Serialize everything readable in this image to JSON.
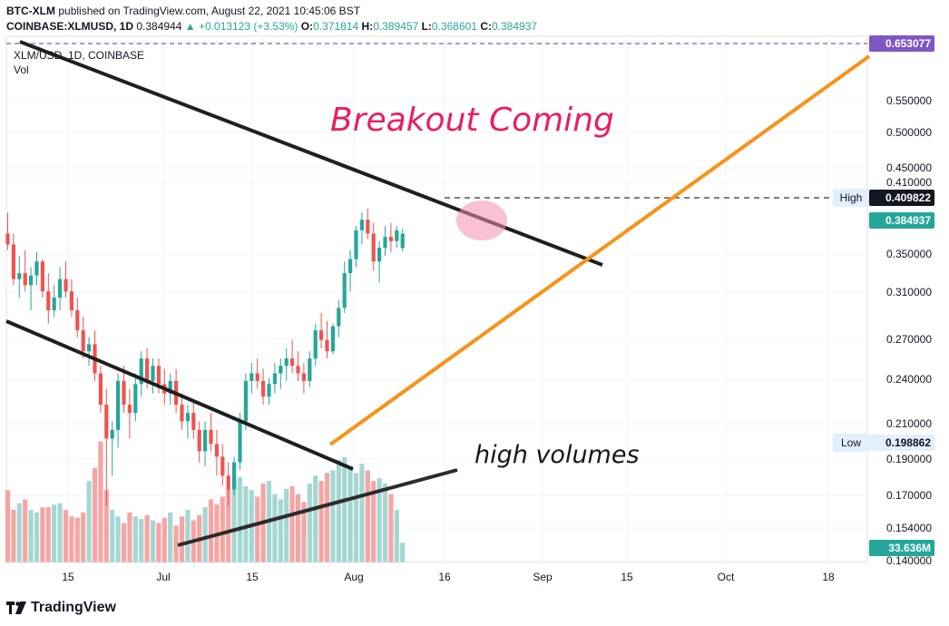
{
  "header": {
    "publisher": "BTC-XLM",
    "published_text": "published on TradingView.com, August 22, 2021 10:45:06 BST",
    "symbol": "COINBASE:XLMUSD, 1D",
    "last": "0.384944",
    "change": "+0.013123 (+3.53%)",
    "o_label": "O:",
    "o": "0.371814",
    "h_label": "H:",
    "h": "0.389457",
    "l_label": "L:",
    "l": "0.368601",
    "c_label": "C:",
    "c": "0.384937"
  },
  "legend": {
    "symbol": "XLM/USD, 1D, COINBASE",
    "vol": "Vol"
  },
  "footer": {
    "brand": "TradingView"
  },
  "annotations": {
    "breakout": "Breakout Coming",
    "volumes": "high volumes"
  },
  "colors": {
    "up": "#26a69a",
    "down": "#ef5350",
    "orange": "#f7931a",
    "pink": "#e91e63",
    "trendline": "#1f1f1f",
    "purple": "#7e57c2"
  },
  "chart_data": {
    "type": "candlestick",
    "title": "XLM/USD, 1D, COINBASE",
    "y_axis_ticks": [
      "0.550000",
      "0.500000",
      "0.450000",
      "0.410000",
      "0.350000",
      "0.310000",
      "0.270000",
      "0.240000",
      "0.210000",
      "0.190000",
      "0.170000",
      "0.154000",
      "0.140000"
    ],
    "x_axis_ticks": [
      "15",
      "Jul",
      "15",
      "Aug",
      "16",
      "Sep",
      "15",
      "Oct",
      "18"
    ],
    "price_labels": [
      {
        "text": "0.653077",
        "kind": "purple"
      },
      {
        "text": "0.409822",
        "kind": "dark",
        "label": "High"
      },
      {
        "text": "0.384937",
        "kind": "green"
      },
      {
        "text": "0.198862",
        "kind": "light",
        "label": "Low"
      },
      {
        "text": "33.636M",
        "kind": "green"
      }
    ],
    "ohlc": [
      [
        0.385,
        0.405,
        0.37,
        0.375
      ],
      [
        0.375,
        0.385,
        0.34,
        0.345
      ],
      [
        0.345,
        0.365,
        0.33,
        0.35
      ],
      [
        0.35,
        0.37,
        0.335,
        0.34
      ],
      [
        0.34,
        0.355,
        0.32,
        0.348
      ],
      [
        0.348,
        0.368,
        0.34,
        0.36
      ],
      [
        0.36,
        0.362,
        0.33,
        0.335
      ],
      [
        0.335,
        0.35,
        0.31,
        0.32
      ],
      [
        0.32,
        0.34,
        0.315,
        0.33
      ],
      [
        0.33,
        0.355,
        0.32,
        0.345
      ],
      [
        0.345,
        0.36,
        0.33,
        0.335
      ],
      [
        0.335,
        0.345,
        0.315,
        0.32
      ],
      [
        0.32,
        0.33,
        0.3,
        0.305
      ],
      [
        0.305,
        0.315,
        0.285,
        0.29
      ],
      [
        0.29,
        0.3,
        0.28,
        0.295
      ],
      [
        0.295,
        0.305,
        0.27,
        0.275
      ],
      [
        0.275,
        0.28,
        0.25,
        0.255
      ],
      [
        0.255,
        0.265,
        0.2,
        0.235
      ],
      [
        0.235,
        0.245,
        0.215,
        0.24
      ],
      [
        0.24,
        0.275,
        0.23,
        0.27
      ],
      [
        0.27,
        0.28,
        0.25,
        0.255
      ],
      [
        0.255,
        0.265,
        0.235,
        0.25
      ],
      [
        0.25,
        0.275,
        0.245,
        0.268
      ],
      [
        0.268,
        0.29,
        0.26,
        0.285
      ],
      [
        0.285,
        0.292,
        0.265,
        0.27
      ],
      [
        0.27,
        0.285,
        0.262,
        0.28
      ],
      [
        0.28,
        0.285,
        0.262,
        0.268
      ],
      [
        0.268,
        0.278,
        0.255,
        0.262
      ],
      [
        0.262,
        0.275,
        0.255,
        0.27
      ],
      [
        0.27,
        0.278,
        0.25,
        0.255
      ],
      [
        0.255,
        0.262,
        0.24,
        0.245
      ],
      [
        0.245,
        0.255,
        0.235,
        0.25
      ],
      [
        0.25,
        0.258,
        0.235,
        0.24
      ],
      [
        0.24,
        0.245,
        0.222,
        0.228
      ],
      [
        0.228,
        0.245,
        0.22,
        0.24
      ],
      [
        0.24,
        0.25,
        0.228,
        0.232
      ],
      [
        0.232,
        0.24,
        0.215,
        0.225
      ],
      [
        0.225,
        0.232,
        0.21,
        0.215
      ],
      [
        0.215,
        0.222,
        0.2,
        0.208
      ],
      [
        0.208,
        0.225,
        0.205,
        0.222
      ],
      [
        0.222,
        0.25,
        0.218,
        0.245
      ],
      [
        0.245,
        0.275,
        0.24,
        0.27
      ],
      [
        0.27,
        0.282,
        0.262,
        0.275
      ],
      [
        0.275,
        0.285,
        0.265,
        0.27
      ],
      [
        0.27,
        0.278,
        0.255,
        0.26
      ],
      [
        0.26,
        0.272,
        0.255,
        0.268
      ],
      [
        0.268,
        0.282,
        0.262,
        0.275
      ],
      [
        0.275,
        0.285,
        0.265,
        0.28
      ],
      [
        0.28,
        0.292,
        0.27,
        0.285
      ],
      [
        0.285,
        0.298,
        0.275,
        0.28
      ],
      [
        0.28,
        0.29,
        0.27,
        0.275
      ],
      [
        0.275,
        0.282,
        0.262,
        0.27
      ],
      [
        0.27,
        0.29,
        0.266,
        0.285
      ],
      [
        0.285,
        0.31,
        0.28,
        0.305
      ],
      [
        0.305,
        0.318,
        0.292,
        0.298
      ],
      [
        0.298,
        0.312,
        0.285,
        0.29
      ],
      [
        0.29,
        0.31,
        0.288,
        0.308
      ],
      [
        0.308,
        0.328,
        0.3,
        0.322
      ],
      [
        0.322,
        0.36,
        0.318,
        0.35
      ],
      [
        0.35,
        0.37,
        0.335,
        0.362
      ],
      [
        0.362,
        0.392,
        0.355,
        0.388
      ],
      [
        0.388,
        0.405,
        0.375,
        0.398
      ],
      [
        0.398,
        0.409,
        0.38,
        0.385
      ],
      [
        0.385,
        0.395,
        0.352,
        0.36
      ],
      [
        0.36,
        0.378,
        0.342,
        0.372
      ],
      [
        0.372,
        0.392,
        0.365,
        0.382
      ],
      [
        0.382,
        0.395,
        0.368,
        0.378
      ],
      [
        0.378,
        0.392,
        0.372,
        0.388
      ],
      [
        0.3718,
        0.3895,
        0.3686,
        0.3849
      ]
    ],
    "volume": [
      0.55,
      0.4,
      0.45,
      0.48,
      0.4,
      0.38,
      0.42,
      0.42,
      0.44,
      0.45,
      0.4,
      0.35,
      0.34,
      0.38,
      0.62,
      0.72,
      0.92,
      0.55,
      0.4,
      0.35,
      0.3,
      0.38,
      0.35,
      0.33,
      0.36,
      0.32,
      0.3,
      0.34,
      0.38,
      0.28,
      0.35,
      0.4,
      0.32,
      0.36,
      0.42,
      0.48,
      0.44,
      0.5,
      0.56,
      0.62,
      0.65,
      0.58,
      0.55,
      0.5,
      0.6,
      0.62,
      0.52,
      0.48,
      0.56,
      0.58,
      0.52,
      0.46,
      0.6,
      0.66,
      0.62,
      0.68,
      0.7,
      0.78,
      0.8,
      0.72,
      0.68,
      0.75,
      0.7,
      0.62,
      0.64,
      0.6,
      0.52,
      0.4,
      0.15
    ],
    "trendlines": [
      "upper-channel",
      "lower-channel",
      "orange-support",
      "volume-trend"
    ]
  }
}
